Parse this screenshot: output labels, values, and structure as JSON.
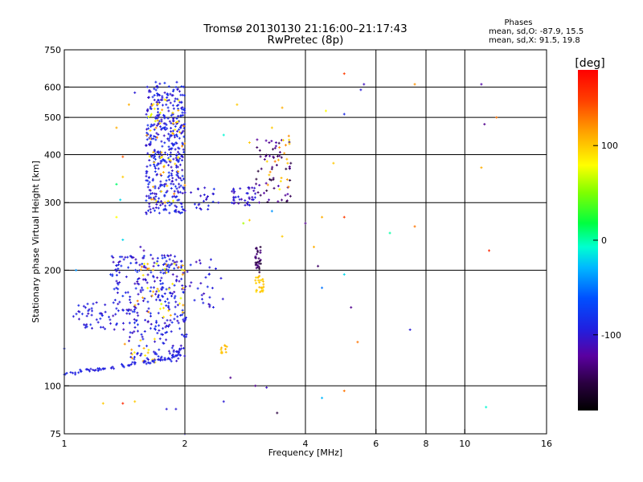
{
  "chart_data": {
    "type": "scatter",
    "title": "Tromsø 20130130 21:16:00–21:17:43",
    "subtitle": "RwPretec (8p)",
    "xlabel": "Frequency [MHz]",
    "ylabel": "Stationary phase Virtual Height [km]",
    "x_scale": "log2",
    "y_scale": "log",
    "xlim": [
      1,
      16
    ],
    "ylim": [
      75,
      750
    ],
    "x_ticks": [
      1,
      2,
      4,
      6,
      8,
      10,
      16
    ],
    "y_ticks": [
      75,
      100,
      200,
      300,
      400,
      500,
      600,
      750
    ],
    "x_gridlines": [
      2,
      4,
      6,
      8,
      10
    ],
    "y_gridlines": [
      100,
      200,
      300,
      400,
      500,
      600
    ],
    "phases_stats": {
      "heading": "Phases",
      "line_O": "mean, sd,O:  -87.9, 15.5",
      "line_X": "mean, sd,X:  91.5, 19.8"
    },
    "colorbar": {
      "label": "[deg]",
      "range": [
        -180,
        180
      ],
      "ticks": [
        100,
        0,
        -100
      ]
    },
    "clusters": [
      {
        "f": [
          1.6,
          2.0
        ],
        "h": [
          280,
          620
        ],
        "phase": [
          -110,
          -80
        ],
        "n": 420
      },
      {
        "f": [
          1.6,
          2.0
        ],
        "h": [
          300,
          560
        ],
        "phase": [
          70,
          130
        ],
        "n": 60
      },
      {
        "f": [
          2.0,
          2.45
        ],
        "h": [
          285,
          330
        ],
        "phase": [
          -115,
          -85
        ],
        "n": 25
      },
      {
        "f": [
          2.6,
          3.0
        ],
        "h": [
          295,
          330
        ],
        "phase": [
          -115,
          -90
        ],
        "n": 40
      },
      {
        "f": [
          3.0,
          3.7
        ],
        "h": [
          300,
          440
        ],
        "phase": [
          -155,
          -115
        ],
        "n": 60
      },
      {
        "f": [
          3.2,
          3.7
        ],
        "h": [
          320,
          460
        ],
        "phase": [
          80,
          130
        ],
        "n": 20
      },
      {
        "f": [
          1.3,
          2.0
        ],
        "h": [
          140,
          220
        ],
        "phase": [
          -115,
          -80
        ],
        "n": 260
      },
      {
        "f": [
          1.5,
          2.0
        ],
        "h": [
          150,
          210
        ],
        "phase": [
          70,
          130
        ],
        "n": 40
      },
      {
        "f": [
          2.0,
          2.5
        ],
        "h": [
          160,
          215
        ],
        "phase": [
          -115,
          -85
        ],
        "n": 30
      },
      {
        "f": [
          1.05,
          1.3
        ],
        "h": [
          140,
          165
        ],
        "phase": [
          -110,
          -85
        ],
        "n": 40
      },
      {
        "f": [
          1.45,
          2.0
        ],
        "h": [
          115,
          140
        ],
        "phase": [
          -110,
          -85
        ],
        "n": 60
      },
      {
        "f": [
          1.4,
          1.9
        ],
        "h": [
          115,
          135
        ],
        "phase": [
          80,
          120
        ],
        "n": 15
      },
      {
        "f": [
          3.0,
          3.1
        ],
        "h": [
          195,
          230
        ],
        "phase": [
          -160,
          -130
        ],
        "n": 30
      },
      {
        "f": [
          3.0,
          3.15
        ],
        "h": [
          175,
          195
        ],
        "phase": [
          90,
          110
        ],
        "n": 25
      },
      {
        "f": [
          2.45,
          2.55
        ],
        "h": [
          120,
          130
        ],
        "phase": [
          95,
          110
        ],
        "n": 10
      }
    ],
    "trace_points": [
      [
        1.0,
        107,
        -90
      ],
      [
        1.05,
        108,
        -95
      ],
      [
        1.1,
        109,
        -92
      ],
      [
        1.18,
        110,
        -100
      ],
      [
        1.25,
        111,
        -95
      ],
      [
        1.32,
        112,
        -98
      ],
      [
        1.4,
        113,
        -92
      ],
      [
        1.5,
        114,
        -95
      ],
      [
        1.58,
        115,
        -97
      ],
      [
        1.66,
        116,
        -93
      ],
      [
        1.74,
        117,
        -96
      ],
      [
        1.82,
        118,
        -94
      ],
      [
        1.9,
        120,
        -95
      ],
      [
        1.96,
        125,
        -98
      ],
      [
        1.99,
        135,
        -94
      ],
      [
        2.0,
        150,
        -96
      ],
      [
        1.15,
        110,
        -96
      ],
      [
        1.22,
        110,
        -93
      ],
      [
        1.45,
        113,
        -96
      ],
      [
        1.62,
        115,
        -92
      ],
      [
        1.78,
        117,
        -95
      ],
      [
        1.88,
        119,
        -93
      ],
      [
        1.93,
        122,
        -97
      ]
    ],
    "sparse_points": [
      [
        5.0,
        650,
        150
      ],
      [
        5.5,
        590,
        -100
      ],
      [
        5.6,
        610,
        -110
      ],
      [
        7.5,
        610,
        120
      ],
      [
        11.0,
        610,
        -120
      ],
      [
        12.0,
        500,
        130
      ],
      [
        11.2,
        480,
        -130
      ],
      [
        11.5,
        225,
        160
      ],
      [
        11.0,
        370,
        110
      ],
      [
        11.3,
        88,
        -10
      ],
      [
        4.5,
        520,
        80
      ],
      [
        5.0,
        510,
        -90
      ],
      [
        4.7,
        380,
        100
      ],
      [
        4.0,
        265,
        -130
      ],
      [
        4.4,
        275,
        110
      ],
      [
        5.0,
        275,
        150
      ],
      [
        6.5,
        250,
        0
      ],
      [
        7.5,
        260,
        130
      ],
      [
        7.3,
        140,
        -100
      ],
      [
        5.0,
        195,
        -20
      ],
      [
        4.4,
        180,
        -50
      ],
      [
        5.2,
        160,
        -130
      ],
      [
        5.4,
        130,
        130
      ],
      [
        4.4,
        93,
        -30
      ],
      [
        5.0,
        97,
        130
      ],
      [
        4.2,
        230,
        110
      ],
      [
        4.3,
        205,
        -140
      ],
      [
        3.0,
        100,
        -130
      ],
      [
        3.2,
        99,
        -110
      ],
      [
        3.4,
        85,
        -150
      ],
      [
        1.4,
        90,
        160
      ],
      [
        1.5,
        91,
        100
      ],
      [
        1.25,
        90,
        100
      ],
      [
        1.8,
        87,
        -100
      ],
      [
        1.9,
        87,
        -100
      ],
      [
        2.5,
        91,
        -100
      ],
      [
        2.0,
        75,
        -100
      ],
      [
        1.38,
        305,
        -20
      ],
      [
        1.35,
        275,
        80
      ],
      [
        1.4,
        240,
        -20
      ],
      [
        1.35,
        335,
        10
      ],
      [
        1.4,
        350,
        100
      ],
      [
        1.35,
        470,
        110
      ],
      [
        1.45,
        540,
        110
      ],
      [
        1.4,
        395,
        140
      ],
      [
        1.55,
        230,
        -110
      ],
      [
        1.58,
        225,
        -120
      ],
      [
        1.5,
        580,
        -100
      ],
      [
        3.5,
        530,
        110
      ],
      [
        3.3,
        470,
        100
      ],
      [
        2.7,
        540,
        100
      ],
      [
        2.5,
        450,
        -10
      ],
      [
        2.8,
        265,
        60
      ],
      [
        2.9,
        270,
        100
      ],
      [
        2.9,
        430,
        100
      ],
      [
        3.5,
        245,
        100
      ],
      [
        3.3,
        285,
        -40
      ],
      [
        1.07,
        200,
        -40
      ],
      [
        1.0,
        125,
        -90
      ],
      [
        2.6,
        105,
        -130
      ]
    ]
  }
}
